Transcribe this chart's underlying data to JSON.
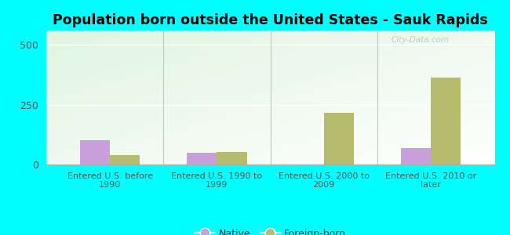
{
  "title": "Population born outside the United States - Sauk Rapids",
  "categories": [
    "Entered U.S. before\n1990",
    "Entered U.S. 1990 to\n1999",
    "Entered U.S. 2000 to\n2009",
    "Entered U.S. 2010 or\nlater"
  ],
  "native_values": [
    100,
    50,
    0,
    70
  ],
  "foreign_values": [
    38,
    52,
    215,
    365
  ],
  "native_color": "#c9a0dc",
  "foreign_color": "#b5bc6e",
  "ylim": [
    0,
    560
  ],
  "yticks": [
    0,
    250,
    500
  ],
  "background_color": "#00ffff",
  "bar_width": 0.28,
  "title_fontsize": 12.5,
  "legend_native": "Native",
  "legend_foreign": "Foreign-born",
  "watermark": "City-Data.com",
  "plot_bg_color": "#e8f5e0",
  "grid_color": "#ffffff",
  "divider_color": "#bbccbb",
  "tick_color": "#555555",
  "spine_color": "#aaaaaa"
}
